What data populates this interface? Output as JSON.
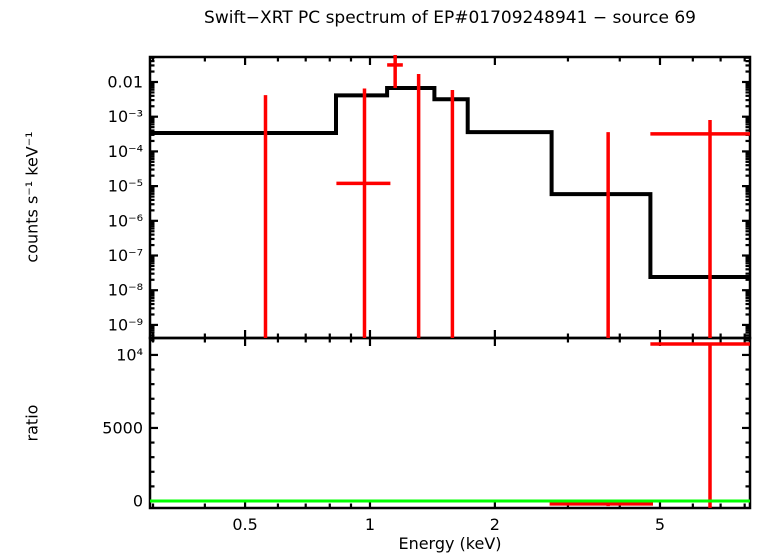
{
  "chart_data": {
    "type": "line",
    "title": "Swift−XRT PC spectrum of EP#01709248941 − source 69",
    "xlabel": "Energy (keV)",
    "x_scale": "log",
    "x_range": [
      0.295,
      8.24
    ],
    "x_major_ticks": [
      0.5,
      1,
      2,
      5
    ],
    "x_tick_labels": [
      "0.5",
      "1",
      "2",
      "5"
    ],
    "x_minor_ticks": [
      0.3,
      0.4,
      0.6,
      0.7,
      0.8,
      0.9,
      3,
      4,
      6,
      7,
      8
    ],
    "colors": {
      "model": "#000000",
      "data": "#ff0000",
      "reference": "#00ff00",
      "frame": "#000000",
      "background": "#ffffff"
    },
    "top_panel": {
      "ylabel": "counts s⁻¹ keV⁻¹",
      "y_scale": "log",
      "y_range": [
        4.2e-10,
        0.0525
      ],
      "y_major_ticks": [
        0.01,
        0.001,
        0.0001,
        1e-05,
        1e-06,
        1e-07,
        1e-08,
        1e-09
      ],
      "y_tick_labels": [
        "0.01",
        "10⁻³",
        "10⁻⁴",
        "10⁻⁵",
        "10⁻⁶",
        "10⁻⁷",
        "10⁻⁸",
        "10⁻⁹"
      ],
      "model_steps": {
        "edges_kev": [
          0.295,
          0.828,
          1.1,
          1.43,
          1.72,
          2.74,
          4.74,
          8.24
        ],
        "values": [
          0.00034,
          0.0041,
          0.0067,
          0.0032,
          0.00036,
          5.9e-06,
          2.4e-08
        ]
      },
      "data_points": [
        {
          "x": 0.56,
          "bar_top": 0.0042,
          "bar_bottom": 4.2e-10,
          "y": null,
          "x_lo": null,
          "x_hi": null
        },
        {
          "x": 0.97,
          "bar_top": 0.0065,
          "bar_bottom": 4.2e-10,
          "y": 1.2e-05,
          "x_lo": 0.83,
          "x_hi": 1.12
        },
        {
          "x": 1.15,
          "bar_top": 0.06,
          "bar_bottom": 0.0067,
          "y": 0.031,
          "x_lo": 1.1,
          "x_hi": 1.2
        },
        {
          "x": 1.31,
          "bar_top": 0.017,
          "bar_bottom": 4.2e-10,
          "y": null,
          "x_lo": null,
          "x_hi": null
        },
        {
          "x": 1.58,
          "bar_top": 0.0059,
          "bar_bottom": 4.2e-10,
          "y": null,
          "x_lo": null,
          "x_hi": null
        },
        {
          "x": 3.75,
          "bar_top": 0.00036,
          "bar_bottom": 4.2e-10,
          "y": null,
          "x_lo": null,
          "x_hi": null
        },
        {
          "x": 6.6,
          "bar_top": 0.0008,
          "bar_bottom": 4.2e-10,
          "y": 0.00032,
          "x_lo": 4.74,
          "x_hi": 8.24
        }
      ]
    },
    "bottom_panel": {
      "ylabel": "ratio",
      "y_scale": "linear",
      "y_range": [
        -480,
        11160
      ],
      "y_major_ticks": [
        0,
        5000,
        10000
      ],
      "y_tick_labels": [
        "0",
        "5000",
        "10⁴"
      ],
      "y_minor_step": 1000,
      "reference_line": {
        "value": 1,
        "color": "#00ff00"
      },
      "data_points": [
        {
          "x": 3.75,
          "bar_top": 100,
          "bar_bottom": -350,
          "y": -200,
          "x_lo": 2.71,
          "x_hi": 4.81
        },
        {
          "x": 6.6,
          "bar_top": 10750,
          "bar_bottom": -470,
          "y": 10750,
          "x_lo": 4.74,
          "x_hi": 8.24
        }
      ]
    }
  }
}
